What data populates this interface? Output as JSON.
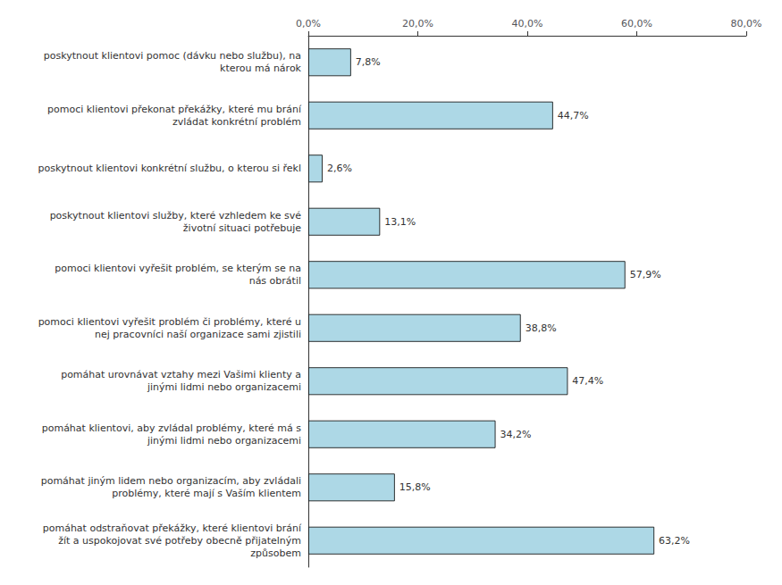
{
  "chart_data": {
    "type": "bar",
    "orientation": "horizontal",
    "categories": [
      "poskytnout klientovi pomoc (dávku nebo službu), na\nkterou má nárok",
      "pomoci klientovi překonat překážky, které mu brání\nzvládat konkrétní problém",
      "poskytnout klientovi konkrétní službu, o kterou si řekl",
      "poskytnout klientovi služby, které vzhledem ke své\nživotní situaci potřebuje",
      "pomoci klientovi vyřešit problém, se kterým se na\nnás obrátil",
      "pomoci klientovi vyřešit problém či problémy, které u\nnej pracovníci naší organizace sami zjistili",
      "pomáhat urovnávat vztahy mezi Vašimi klienty a\njinými lidmi nebo organizacemi",
      "pomáhat klientovi, aby zvládal problémy, které má s\njinými lidmi nebo organizacemi",
      "pomáhat jiným lidem nebo organizacím, aby zvládali\nproblémy, které mají s Vaším klientem",
      "pomáhat odstraňovat překážky, které klientovi brání\nžít a uspokojovat své potřeby obecně přijatelným\nzpůsobem"
    ],
    "values": [
      7.8,
      44.7,
      2.6,
      13.1,
      57.9,
      38.8,
      47.4,
      34.2,
      15.8,
      63.2
    ],
    "value_labels": [
      "7,8%",
      "44,7%",
      "2,6%",
      "13,1%",
      "57,9%",
      "38,8%",
      "47,4%",
      "34,2%",
      "15,8%",
      "63,2%"
    ],
    "data_labels": true,
    "color": "#ADD8E6",
    "xlim": [
      0,
      80
    ],
    "xticks": [
      {
        "value": 0,
        "label": "0,0%"
      },
      {
        "value": 20,
        "label": "20,0%"
      },
      {
        "value": 40,
        "label": "40,0%"
      },
      {
        "value": 60,
        "label": "60,0%"
      },
      {
        "value": 80,
        "label": "80,0%"
      }
    ],
    "grid": false
  }
}
